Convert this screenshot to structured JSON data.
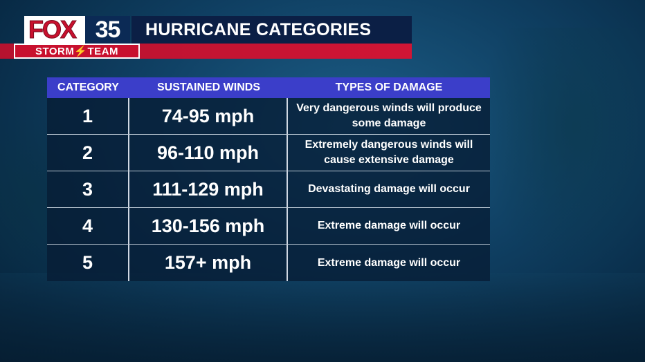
{
  "header": {
    "logo_fox": "FOX",
    "logo_number": "35",
    "title": "HURRICANE CATEGORIES",
    "team": "STORM⚡TEAM"
  },
  "table": {
    "headers": [
      "CATEGORY",
      "SUSTAINED WINDS",
      "TYPES OF DAMAGE"
    ],
    "rows": [
      {
        "category": "1",
        "winds": "74-95 mph",
        "damage": "Very dangerous winds will produce some damage"
      },
      {
        "category": "2",
        "winds": "96-110 mph",
        "damage": "Extremely dangerous winds will cause extensive damage"
      },
      {
        "category": "3",
        "winds": "111-129 mph",
        "damage": "Devastating damage will occur"
      },
      {
        "category": "4",
        "winds": "130-156 mph",
        "damage": "Extreme damage will occur"
      },
      {
        "category": "5",
        "winds": "157+ mph",
        "damage": "Extreme damage will occur"
      }
    ]
  },
  "colors": {
    "header_row": "#3b3ec9",
    "fox_red": "#c8102e",
    "navy": "#0b1f45"
  }
}
